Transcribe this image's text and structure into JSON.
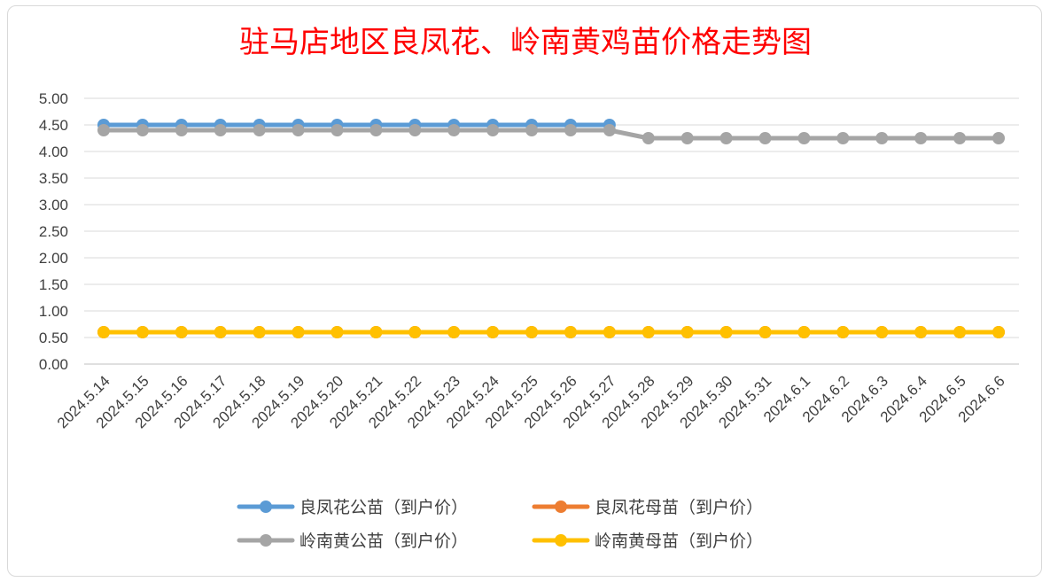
{
  "chart_data": {
    "type": "line",
    "title": "驻马店地区良凤花、岭南黄鸡苗价格走势图",
    "xlabel": "",
    "ylabel": "",
    "ylim": [
      0,
      5
    ],
    "ytick_step": 0.5,
    "grid": true,
    "legend_position": "bottom",
    "categories": [
      "2024.5.14",
      "2024.5.15",
      "2024.5.16",
      "2024.5.17",
      "2024.5.18",
      "2024.5.19",
      "2024.5.20",
      "2024.5.21",
      "2024.5.22",
      "2024.5.23",
      "2024.5.24",
      "2024.5.25",
      "2024.5.26",
      "2024.5.27",
      "2024.5.28",
      "2024.5.29",
      "2024.5.30",
      "2024.5.31",
      "2024.6.1",
      "2024.6.2",
      "2024.6.3",
      "2024.6.4",
      "2024.6.5",
      "2024.6.6"
    ],
    "series": [
      {
        "name": "良凤花公苗（到户价）",
        "color": "#5b9bd5",
        "values": [
          4.5,
          4.5,
          4.5,
          4.5,
          4.5,
          4.5,
          4.5,
          4.5,
          4.5,
          4.5,
          4.5,
          4.5,
          4.5,
          4.5,
          null,
          null,
          null,
          null,
          null,
          null,
          null,
          null,
          null,
          null
        ]
      },
      {
        "name": "良凤花母苗（到户价）",
        "color": "#ed7d31",
        "values": [
          0.6,
          0.6,
          0.6,
          0.6,
          0.6,
          0.6,
          0.6,
          0.6,
          0.6,
          0.6,
          0.6,
          0.6,
          0.6,
          0.6,
          0.6,
          0.6,
          0.6,
          0.6,
          0.6,
          0.6,
          0.6,
          0.6,
          0.6,
          0.6
        ]
      },
      {
        "name": "岭南黄公苗（到户价）",
        "color": "#a5a5a5",
        "values": [
          4.4,
          4.4,
          4.4,
          4.4,
          4.4,
          4.4,
          4.4,
          4.4,
          4.4,
          4.4,
          4.4,
          4.4,
          4.4,
          4.4,
          4.25,
          4.25,
          4.25,
          4.25,
          4.25,
          4.25,
          4.25,
          4.25,
          4.25,
          4.25
        ]
      },
      {
        "name": "岭南黄母苗（到户价）",
        "color": "#ffc000",
        "values": [
          0.6,
          0.6,
          0.6,
          0.6,
          0.6,
          0.6,
          0.6,
          0.6,
          0.6,
          0.6,
          0.6,
          0.6,
          0.6,
          0.6,
          0.6,
          0.6,
          0.6,
          0.6,
          0.6,
          0.6,
          0.6,
          0.6,
          0.6,
          0.6
        ]
      }
    ]
  }
}
